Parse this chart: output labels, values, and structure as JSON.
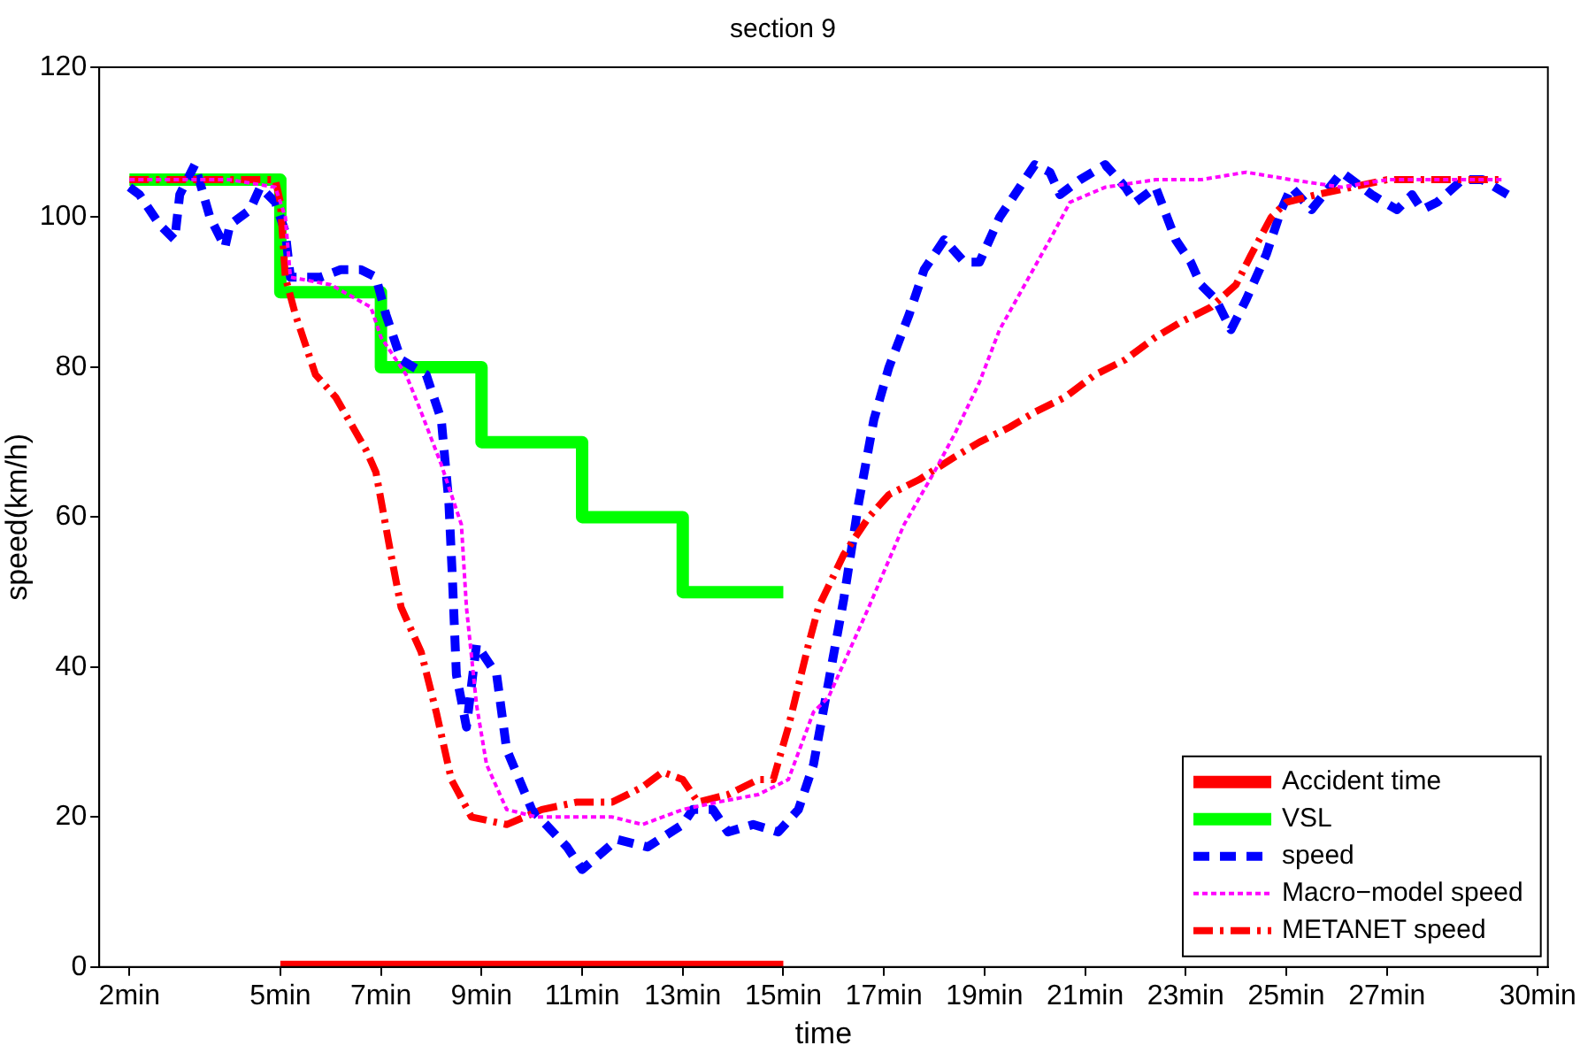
{
  "chart_data": {
    "type": "line",
    "title": "section 9",
    "xlabel": "time",
    "ylabel": "speed(km/h)",
    "xlim": [
      1.4,
      30.2
    ],
    "ylim": [
      0,
      120
    ],
    "xticks": [
      {
        "value": 2,
        "label": "2min"
      },
      {
        "value": 5,
        "label": "5min"
      },
      {
        "value": 7,
        "label": "7min"
      },
      {
        "value": 9,
        "label": "9min"
      },
      {
        "value": 11,
        "label": "11min"
      },
      {
        "value": 13,
        "label": "13min"
      },
      {
        "value": 15,
        "label": "15min"
      },
      {
        "value": 17,
        "label": "17min"
      },
      {
        "value": 19,
        "label": "19min"
      },
      {
        "value": 21,
        "label": "21min"
      },
      {
        "value": 23,
        "label": "23min"
      },
      {
        "value": 25,
        "label": "25min"
      },
      {
        "value": 27,
        "label": "27min"
      },
      {
        "value": 30,
        "label": "30min"
      }
    ],
    "yticks": [
      0,
      20,
      40,
      60,
      80,
      100,
      120
    ],
    "grid": false,
    "legend": "bottom right",
    "marker": "none",
    "series": [
      {
        "name": "Accident time",
        "color": "#ff0000",
        "line_style": "solid",
        "x": [
          5,
          15
        ],
        "values": [
          0,
          0
        ]
      },
      {
        "name": "VSL",
        "type": "step",
        "color": "#00ff00",
        "line_style": "solid",
        "x": [
          2,
          5,
          7,
          9,
          11,
          13,
          15
        ],
        "values": [
          105,
          90,
          80,
          70,
          60,
          50,
          50
        ]
      },
      {
        "name": "speed",
        "color": "#0000ff",
        "line_style": "dashed",
        "x": [
          2.0,
          2.2,
          2.6,
          2.9,
          3.0,
          3.3,
          3.6,
          3.9,
          4.0,
          4.4,
          4.6,
          4.9,
          5.1,
          5.2,
          5.8,
          6.2,
          6.6,
          6.9,
          7.1,
          7.4,
          7.9,
          8.2,
          8.35,
          8.42,
          8.5,
          8.7,
          8.9,
          9.3,
          9.5,
          10.0,
          10.7,
          11.0,
          11.7,
          12.3,
          13.0,
          13.2,
          13.6,
          13.9,
          14.4,
          14.9,
          15.3,
          15.6,
          15.9,
          16.2,
          16.5,
          16.8,
          17.1,
          17.5,
          17.8,
          18.2,
          18.6,
          18.9,
          19.3,
          19.7,
          20.0,
          20.3,
          20.5,
          20.9,
          21.4,
          21.8,
          22.0,
          22.4,
          22.8,
          23.1,
          23.3,
          23.6,
          23.9,
          24.2,
          24.6,
          24.9,
          25.1,
          25.5,
          26.1,
          26.7,
          27.2,
          27.5,
          27.7,
          28.0,
          28.5,
          28.9,
          29.4
        ],
        "values": [
          104,
          103,
          99,
          97,
          103,
          107,
          100,
          96,
          99,
          101,
          104,
          102,
          98,
          92,
          92,
          93,
          93,
          92,
          87,
          81,
          79,
          73,
          62,
          52,
          39,
          32,
          43,
          39,
          29,
          21,
          16,
          13,
          17,
          16,
          19,
          21,
          21,
          18,
          19,
          18,
          21,
          27,
          38,
          49,
          62,
          73,
          80,
          87,
          93,
          97,
          94,
          94,
          100,
          104,
          107,
          106,
          103,
          105,
          107,
          104,
          102,
          104,
          97,
          94,
          91,
          89,
          85,
          89,
          95,
          101,
          104,
          101,
          106,
          103,
          101,
          103,
          101,
          102,
          105,
          105,
          103
        ]
      },
      {
        "name": "Macro−model speed",
        "color": "#ff00ff",
        "line_style": "dotted",
        "x": [
          2.0,
          3.0,
          4.0,
          4.9,
          5.1,
          5.2,
          6.0,
          6.8,
          7.0,
          7.5,
          7.8,
          8.2,
          8.6,
          8.7,
          8.9,
          9.1,
          9.5,
          10.1,
          10.8,
          11.6,
          12.2,
          13.0,
          13.7,
          14.5,
          15.1,
          15.6,
          15.9,
          16.7,
          17.4,
          18.0,
          18.4,
          18.9,
          19.3,
          19.8,
          20.3,
          20.7,
          21.4,
          22.4,
          23.3,
          24.2,
          25.1,
          26.1,
          27.0,
          27.9,
          28.9,
          29.3
        ],
        "values": [
          105,
          105,
          105,
          104,
          100,
          92,
          91,
          88,
          84,
          79,
          74,
          67,
          59,
          48,
          35,
          27,
          21,
          20,
          20,
          20,
          19,
          21,
          22,
          23,
          25,
          34,
          36,
          48,
          59,
          66,
          71,
          78,
          85,
          91,
          97,
          102,
          104,
          105,
          105,
          106,
          105,
          104,
          105,
          105,
          105,
          105
        ]
      },
      {
        "name": "METANET speed",
        "color": "#ff0000",
        "line_style": "dashdot",
        "x": [
          2.0,
          3.0,
          4.0,
          4.9,
          5.0,
          5.1,
          5.3,
          5.7,
          6.1,
          6.7,
          6.9,
          7.2,
          7.4,
          7.8,
          8.1,
          8.4,
          8.8,
          9.5,
          10.2,
          10.9,
          11.6,
          12.2,
          12.6,
          13.0,
          13.3,
          13.9,
          14.5,
          14.8,
          15.1,
          15.5,
          15.7,
          16.2,
          16.7,
          17.1,
          17.7,
          18.4,
          18.9,
          19.5,
          20.0,
          20.6,
          21.2,
          21.8,
          22.4,
          22.9,
          23.5,
          24.0,
          24.3,
          24.7,
          25.0,
          25.6,
          26.3,
          27.0,
          27.7,
          28.4,
          29.3
        ],
        "values": [
          105,
          105,
          105,
          105,
          102,
          92,
          87,
          79,
          76,
          69,
          66,
          55,
          48,
          42,
          34,
          25,
          20,
          19,
          21,
          22,
          22,
          24,
          26,
          25,
          22,
          23,
          25,
          25,
          32,
          43,
          48,
          55,
          60,
          63,
          65,
          68,
          70,
          72,
          74,
          76,
          79,
          81,
          84,
          86,
          88,
          91,
          95,
          100,
          102,
          103,
          104,
          105,
          105,
          105,
          105
        ]
      }
    ]
  }
}
